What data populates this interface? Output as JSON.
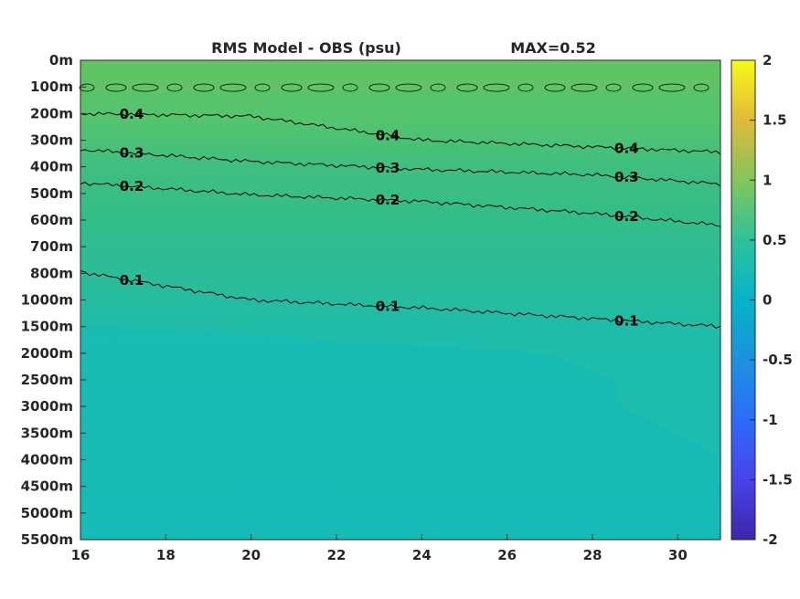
{
  "chart_data": {
    "type": "heatmap",
    "title": "RMS Model - OBS (psu)",
    "max_label": "MAX=0.52",
    "xlabel": "",
    "ylabel": "",
    "xlim": [
      16,
      31
    ],
    "x_ticks": [
      "16",
      "18",
      "20",
      "22",
      "24",
      "26",
      "28",
      "30"
    ],
    "y_ticks": [
      "0m",
      "100m",
      "200m",
      "300m",
      "400m",
      "500m",
      "600m",
      "700m",
      "800m",
      "1000m",
      "1500m",
      "2000m",
      "2500m",
      "3000m",
      "3500m",
      "4000m",
      "4500m",
      "5000m",
      "5500m"
    ],
    "colorbar": {
      "range": [
        -2,
        2
      ],
      "ticks": [
        "2",
        "1.5",
        "1",
        "0.5",
        "0",
        "-0.5",
        "-1",
        "-1.5",
        "-2"
      ],
      "colormap": "parula"
    },
    "contours": [
      {
        "level": 0.4,
        "label": "0.4",
        "depth_at_x": [
          [
            16,
            200
          ],
          [
            20,
            210
          ],
          [
            24,
            300
          ],
          [
            28,
            325
          ],
          [
            31,
            345
          ]
        ]
      },
      {
        "level": 0.3,
        "label": "0.3",
        "depth_at_x": [
          [
            16,
            335
          ],
          [
            20,
            380
          ],
          [
            24,
            410
          ],
          [
            28,
            430
          ],
          [
            31,
            465
          ]
        ]
      },
      {
        "level": 0.2,
        "label": "0.2",
        "depth_at_x": [
          [
            16,
            460
          ],
          [
            20,
            505
          ],
          [
            24,
            530
          ],
          [
            28,
            575
          ],
          [
            31,
            620
          ]
        ]
      },
      {
        "level": 0.1,
        "label": "0.1",
        "depth_at_x": [
          [
            16,
            790
          ],
          [
            20,
            1000
          ],
          [
            24,
            1150
          ],
          [
            28,
            1350
          ],
          [
            31,
            1500
          ]
        ]
      }
    ],
    "grid": false
  }
}
